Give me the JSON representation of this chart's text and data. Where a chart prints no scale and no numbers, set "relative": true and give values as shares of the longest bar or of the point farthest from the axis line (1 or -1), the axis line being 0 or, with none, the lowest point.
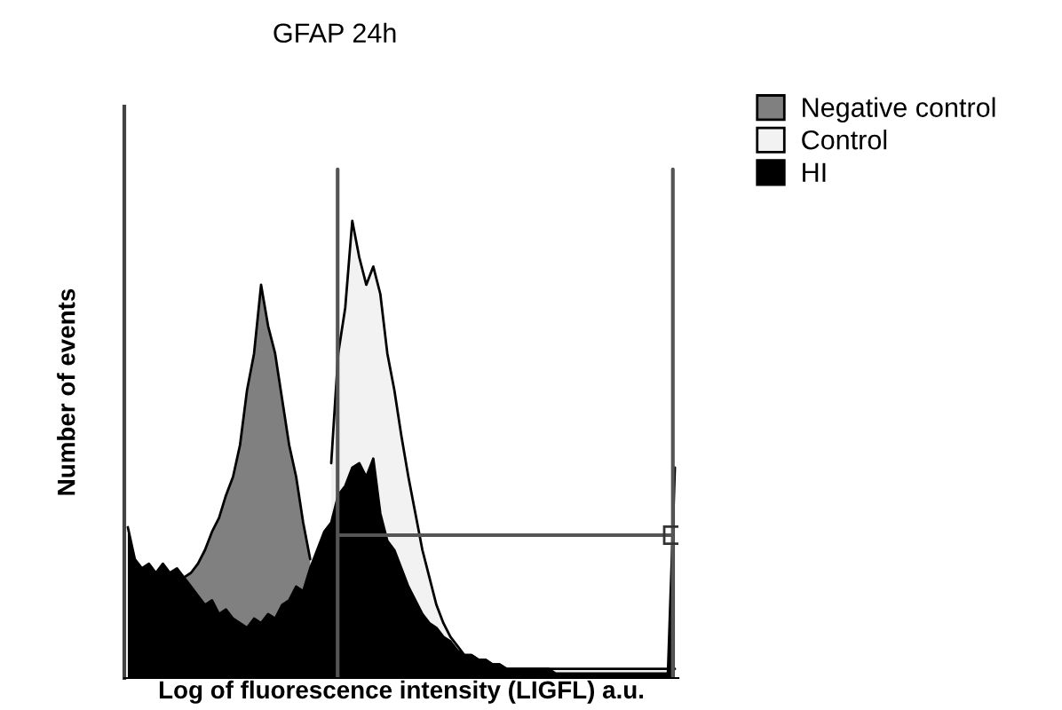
{
  "chart_data": {
    "type": "area",
    "title": "GFAP 24h",
    "xlabel": "Log of fluorescence intensity (LIGFL) a.u.",
    "ylabel": "Number of events",
    "relative": true,
    "tick_labels": false,
    "legend": "top right",
    "categories": [
      null,
      null,
      null,
      null,
      null,
      null,
      null,
      null,
      null,
      null,
      null,
      null,
      null,
      null,
      null,
      null,
      null,
      null,
      null,
      null,
      null,
      null,
      null,
      null,
      null,
      null,
      null,
      null,
      null,
      null,
      null,
      null,
      null,
      null,
      null,
      null,
      null,
      null,
      null,
      null,
      null,
      null,
      null,
      null,
      null,
      null,
      null,
      null,
      null,
      null,
      null,
      null,
      null,
      null,
      null,
      null,
      null,
      null,
      null,
      null,
      null,
      null,
      null,
      null,
      null,
      null,
      null,
      null,
      null,
      null,
      null,
      null,
      null,
      null,
      null,
      null,
      null,
      null,
      null
    ],
    "series": [
      {
        "name": "Negative control",
        "color": "#808080",
        "values": [
          null,
          null,
          null,
          null,
          null,
          null,
          null,
          null,
          0.22,
          0.23,
          0.25,
          0.28,
          0.32,
          0.35,
          0.4,
          0.44,
          0.51,
          0.63,
          0.71,
          0.86,
          0.77,
          0.71,
          0.61,
          0.51,
          0.44,
          0.34,
          0.26,
          null,
          null,
          null,
          null,
          null,
          null,
          null,
          null,
          null,
          null,
          null,
          null,
          null,
          null,
          null,
          null,
          null,
          null,
          null,
          null,
          null,
          null,
          null,
          null,
          null,
          null,
          null,
          null,
          null,
          null,
          null,
          null,
          null,
          null,
          null,
          null,
          null,
          null,
          null,
          null,
          null,
          null,
          null,
          null,
          null,
          null,
          null,
          null,
          null,
          null,
          null,
          null
        ]
      },
      {
        "name": "Control",
        "color": "#f2f2f2",
        "values": [
          null,
          null,
          null,
          null,
          null,
          null,
          null,
          null,
          null,
          null,
          null,
          null,
          null,
          null,
          null,
          null,
          null,
          null,
          null,
          null,
          null,
          null,
          null,
          null,
          null,
          null,
          null,
          null,
          null,
          0.47,
          0.71,
          0.81,
          1.0,
          0.92,
          0.86,
          0.9,
          0.84,
          0.71,
          0.63,
          0.53,
          0.44,
          0.36,
          0.28,
          0.22,
          0.16,
          0.12,
          0.09,
          0.07,
          0.05,
          0.05,
          0.04,
          0.04,
          0.03,
          0.03,
          0.02,
          0.02,
          0.02,
          0.02,
          0.02,
          0.02,
          0.02,
          0.02,
          0.02,
          0.02,
          0.02,
          0.02,
          0.02,
          0.02,
          0.02,
          0.02,
          0.02,
          0.02,
          0.02,
          0.02,
          0.02,
          0.02,
          0.02,
          0.02,
          0.02
        ]
      },
      {
        "name": "HI",
        "color": "#000000",
        "values": [
          0.33,
          0.26,
          0.24,
          0.25,
          0.23,
          0.25,
          0.23,
          0.24,
          0.22,
          0.2,
          0.18,
          0.16,
          0.17,
          0.14,
          0.15,
          0.13,
          0.12,
          0.11,
          0.13,
          0.12,
          0.14,
          0.13,
          0.16,
          0.17,
          0.2,
          0.19,
          0.24,
          0.28,
          0.32,
          0.34,
          0.4,
          0.42,
          0.46,
          0.47,
          0.44,
          0.48,
          0.36,
          0.3,
          0.28,
          0.24,
          0.2,
          0.17,
          0.14,
          0.12,
          0.11,
          0.09,
          0.08,
          0.06,
          0.05,
          0.05,
          0.04,
          0.04,
          0.03,
          0.03,
          0.02,
          0.02,
          0.02,
          0.02,
          0.02,
          0.02,
          0.02,
          0.01,
          0.01,
          0.01,
          0.01,
          0.01,
          0.01,
          0.01,
          0.01,
          0.01,
          0.01,
          0.01,
          0.01,
          0.01,
          0.01,
          0.01,
          0.01,
          0.01,
          0.46
        ]
      }
    ]
  }
}
